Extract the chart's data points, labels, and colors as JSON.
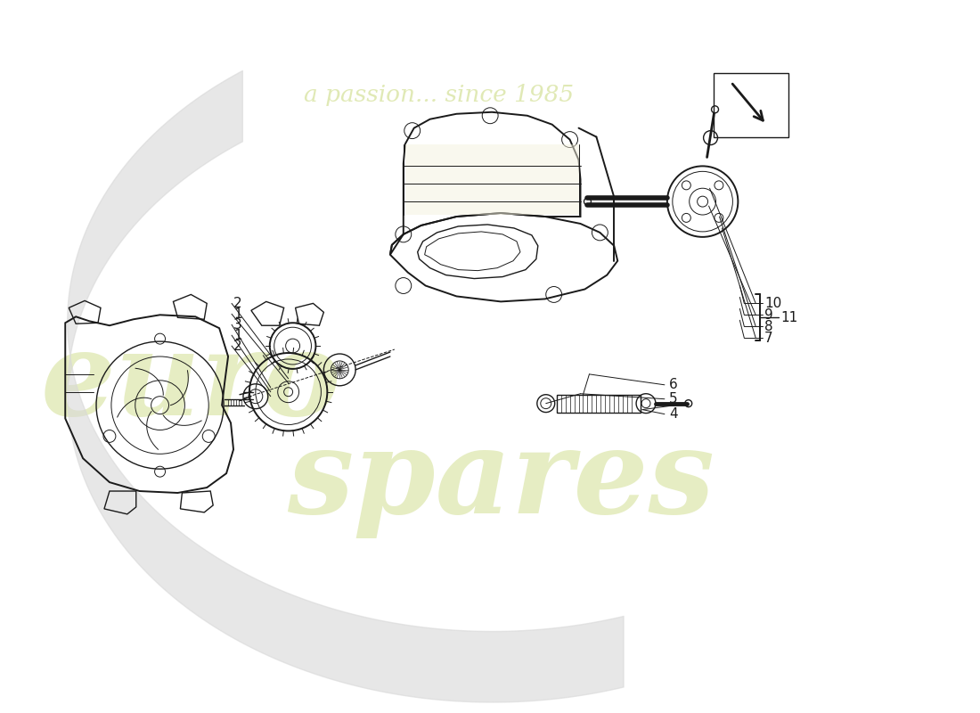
{
  "bg_color": "#ffffff",
  "line_color": "#1a1a1a",
  "label_color": "#111111",
  "watermark_color": "#c8d87a",
  "watermark_alpha": 0.45,
  "swoosh_color": "#d8d8d8",
  "swoosh_alpha": 0.6,
  "part_numbers_left": [
    "2",
    "1",
    "3",
    "1",
    "2"
  ],
  "part_numbers_right_filter": [
    "4",
    "5",
    "6"
  ],
  "part_numbers_motor": [
    "7",
    "8",
    "9",
    "10"
  ],
  "part_number_11": "11"
}
